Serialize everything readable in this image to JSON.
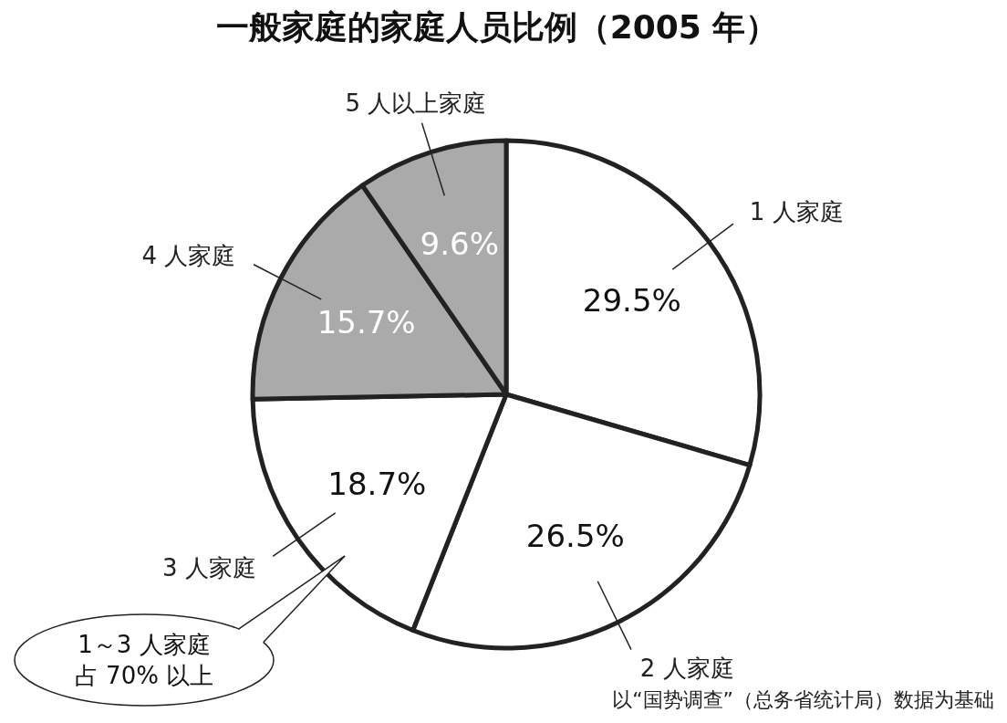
{
  "chart_data": {
    "type": "pie",
    "title": "一般家庭的家庭人员比例（2005 年）",
    "categories": [
      "1 人家庭",
      "2 人家庭",
      "3 人家庭",
      "4 人家庭",
      "5 人以上家庭"
    ],
    "values": [
      29.5,
      26.5,
      18.7,
      15.7,
      9.6
    ],
    "value_labels": [
      "29.5%",
      "26.5%",
      "18.7%",
      "15.7%",
      "9.6%"
    ],
    "colors": [
      "#ffffff",
      "#ffffff",
      "#ffffff",
      "#aaaaaa",
      "#aaaaaa"
    ],
    "annotations": [
      "1～3 人家庭",
      "占 70% 以上",
      "以“国势调查”（总务省统计局）数据为基础"
    ]
  }
}
